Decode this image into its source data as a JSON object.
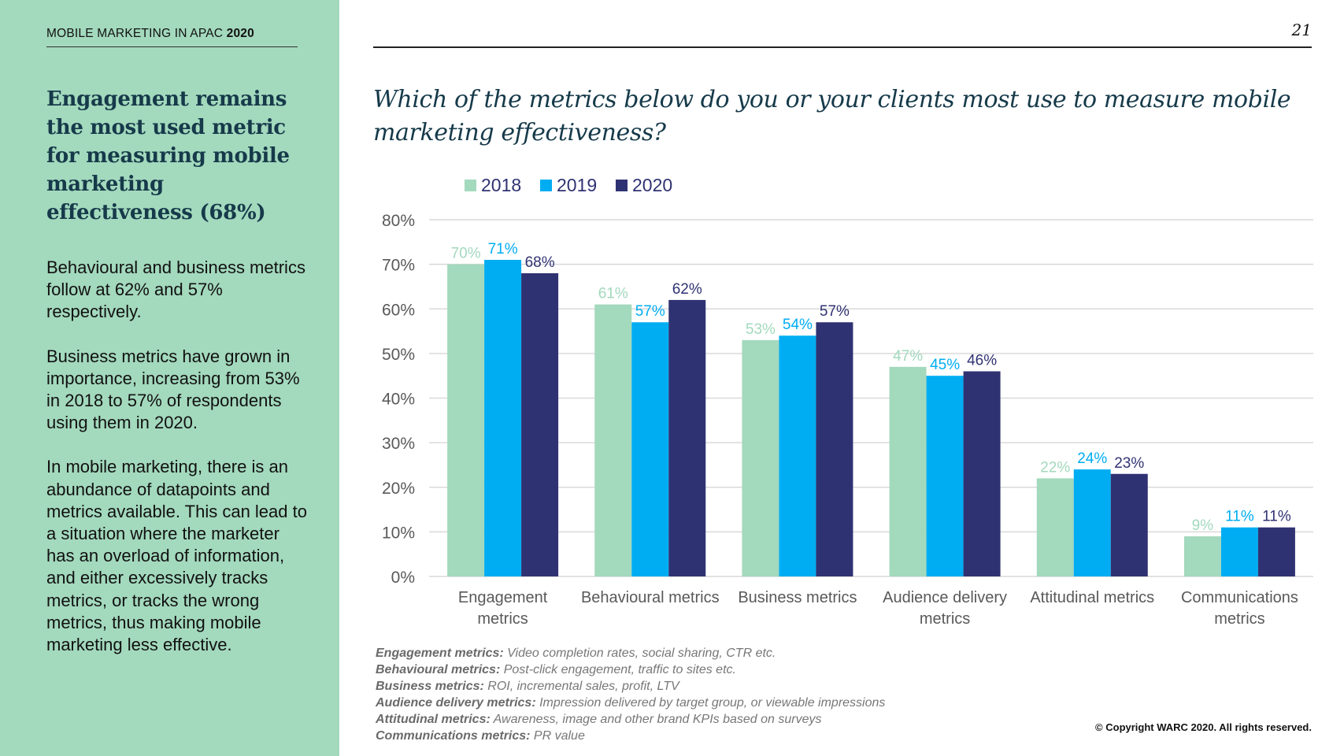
{
  "report": {
    "label_prefix": "MOBILE MARKETING IN APAC ",
    "label_year": "2020",
    "page_number": "21"
  },
  "sidebar": {
    "heading": "Engagement remains the most used metric for measuring mobile marketing effectiveness (68%)",
    "paragraphs": [
      "Behavioural and business metrics follow at 62% and 57% respectively.",
      "Business metrics have grown in importance, increasing from 53% in 2018 to 57% of respondents using them in 2020.",
      "In mobile marketing,  there is an abundance of datapoints and metrics available. This can lead to a situation where the marketer has an overload of information, and either excessively tracks metrics, or tracks the wrong metrics, thus making mobile marketing less effective."
    ]
  },
  "question": "Which of the metrics below do you or your clients most use to measure mobile marketing effectiveness?",
  "chart_data": {
    "type": "bar",
    "title": "",
    "xlabel": "",
    "ylabel": "",
    "ylim": [
      0,
      80
    ],
    "yticks": [
      "0%",
      "10%",
      "20%",
      "30%",
      "40%",
      "50%",
      "60%",
      "70%",
      "80%"
    ],
    "categories": [
      [
        "Engagement",
        "metrics"
      ],
      [
        "Behavioural metrics"
      ],
      [
        "Business metrics"
      ],
      [
        "Audience delivery",
        "metrics"
      ],
      [
        "Attitudinal metrics"
      ],
      [
        "Communications",
        "metrics"
      ]
    ],
    "series": [
      {
        "name": "2018",
        "color": "#a3d9bd",
        "values": [
          70,
          61,
          53,
          47,
          22,
          9
        ]
      },
      {
        "name": "2019",
        "color": "#00adf2",
        "values": [
          71,
          57,
          54,
          45,
          24,
          11
        ]
      },
      {
        "name": "2020",
        "color": "#2f3272",
        "values": [
          68,
          62,
          57,
          46,
          23,
          11
        ]
      }
    ],
    "legend_position": "top-left",
    "grid": true
  },
  "footnotes": [
    {
      "term": "Engagement metrics:",
      "desc": " Video completion rates, social sharing, CTR etc."
    },
    {
      "term": "Behavioural metrics:",
      "desc": " Post-click engagement, traffic to sites etc."
    },
    {
      "term": "Business metrics:",
      "desc": " ROI, incremental sales, profit, LTV"
    },
    {
      "term": "Audience delivery metrics:",
      "desc": " Impression delivered by target group, or viewable impressions"
    },
    {
      "term": "Attitudinal metrics:",
      "desc": " Awareness, image and other brand KPIs based on surveys"
    },
    {
      "term": "Communications metrics:",
      "desc": " PR value"
    }
  ],
  "copyright": "© Copyright WARC 2020. All rights reserved."
}
